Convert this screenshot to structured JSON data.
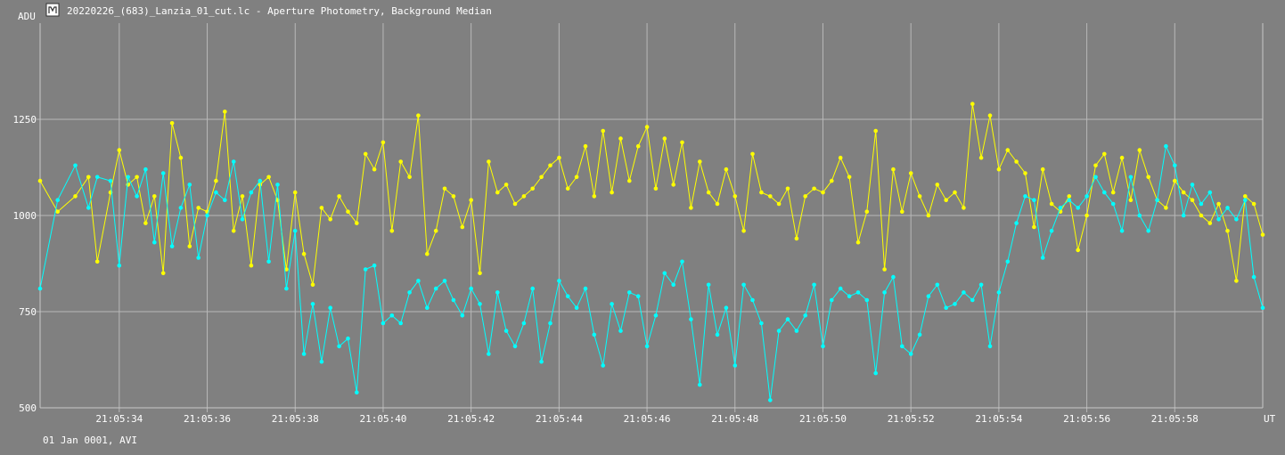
{
  "window": {
    "title": "20220226_(683)_Lanzia_01_cut.lc - Aperture Photometry, Background Median",
    "icon": "lightcurve-app-icon"
  },
  "footer": {
    "date_label": "01 Jan 0001, AVI"
  },
  "chart_data": {
    "type": "line",
    "ylabel": "ADU",
    "xlabel": "UT",
    "ylim": [
      500,
      1500
    ],
    "xlim_seconds": [
      32.2,
      60.0
    ],
    "y_ticks": [
      500,
      750,
      1000,
      1250
    ],
    "x_ticks": [
      {
        "sec": 34,
        "label": "21:05:34"
      },
      {
        "sec": 36,
        "label": "21:05:36"
      },
      {
        "sec": 38,
        "label": "21:05:38"
      },
      {
        "sec": 40,
        "label": "21:05:40"
      },
      {
        "sec": 42,
        "label": "21:05:42"
      },
      {
        "sec": 44,
        "label": "21:05:44"
      },
      {
        "sec": 46,
        "label": "21:05:46"
      },
      {
        "sec": 48,
        "label": "21:05:48"
      },
      {
        "sec": 50,
        "label": "21:05:50"
      },
      {
        "sec": 52,
        "label": "21:05:52"
      },
      {
        "sec": 54,
        "label": "21:05:54"
      },
      {
        "sec": 56,
        "label": "21:05:56"
      },
      {
        "sec": 58,
        "label": "21:05:58"
      }
    ],
    "grid": true,
    "series": [
      {
        "color": "#ffff00",
        "x": [
          32.2,
          32.6,
          33.0,
          33.3,
          33.5,
          33.8,
          34.0,
          34.2,
          34.4,
          34.6,
          34.8,
          35.0,
          35.2,
          35.4,
          35.6,
          35.8,
          36.0,
          36.2,
          36.4,
          36.6,
          36.8,
          37.0,
          37.2,
          37.4,
          37.6,
          37.8,
          38.0,
          38.2,
          38.4,
          38.6,
          38.8,
          39.0,
          39.2,
          39.4,
          39.6,
          39.8,
          40.0,
          40.2,
          40.4,
          40.6,
          40.8,
          41.0,
          41.2,
          41.4,
          41.6,
          41.8,
          42.0,
          42.2,
          42.4,
          42.6,
          42.8,
          43.0,
          43.2,
          43.4,
          43.6,
          43.8,
          44.0,
          44.2,
          44.4,
          44.6,
          44.8,
          45.0,
          45.2,
          45.4,
          45.6,
          45.8,
          46.0,
          46.2,
          46.4,
          46.6,
          46.8,
          47.0,
          47.2,
          47.4,
          47.6,
          47.8,
          48.0,
          48.2,
          48.4,
          48.6,
          48.8,
          49.0,
          49.2,
          49.4,
          49.6,
          49.8,
          50.0,
          50.2,
          50.4,
          50.6,
          50.8,
          51.0,
          51.2,
          51.4,
          51.6,
          51.8,
          52.0,
          52.2,
          52.4,
          52.6,
          52.8,
          53.0,
          53.2,
          53.4,
          53.6,
          53.8,
          54.0,
          54.2,
          54.4,
          54.6,
          54.8,
          55.0,
          55.2,
          55.4,
          55.6,
          55.8,
          56.0,
          56.2,
          56.4,
          56.6,
          56.8,
          57.0,
          57.2,
          57.4,
          57.6,
          57.8,
          58.0,
          58.2,
          58.4,
          58.6,
          58.8,
          59.0,
          59.2,
          59.4,
          59.6,
          59.8,
          60.0
        ],
        "values": [
          1090,
          1010,
          1050,
          1100,
          880,
          1060,
          1170,
          1080,
          1100,
          980,
          1050,
          850,
          1240,
          1150,
          920,
          1020,
          1010,
          1090,
          1270,
          960,
          1050,
          870,
          1080,
          1100,
          1040,
          860,
          1060,
          900,
          820,
          1020,
          990,
          1050,
          1010,
          980,
          1160,
          1120,
          1190,
          960,
          1140,
          1100,
          1260,
          900,
          960,
          1070,
          1050,
          970,
          1040,
          850,
          1140,
          1060,
          1080,
          1030,
          1050,
          1070,
          1100,
          1130,
          1150,
          1070,
          1100,
          1180,
          1050,
          1220,
          1060,
          1200,
          1090,
          1180,
          1230,
          1070,
          1200,
          1080,
          1190,
          1020,
          1140,
          1060,
          1030,
          1120,
          1050,
          960,
          1160,
          1060,
          1050,
          1030,
          1070,
          940,
          1050,
          1070,
          1060,
          1090,
          1150,
          1100,
          930,
          1010,
          1220,
          860,
          1120,
          1010,
          1110,
          1050,
          1000,
          1080,
          1040,
          1060,
          1020,
          1290,
          1150,
          1260,
          1120,
          1170,
          1140,
          1110,
          970,
          1120,
          1030,
          1010,
          1050,
          910,
          1000,
          1130,
          1160,
          1060,
          1150,
          1040,
          1170,
          1100,
          1040,
          1020,
          1090,
          1060,
          1040,
          1000,
          980,
          1030,
          960,
          830,
          1050,
          1030,
          950
        ]
      },
      {
        "color": "#00ffff",
        "x": [
          32.2,
          32.6,
          33.0,
          33.3,
          33.5,
          33.8,
          34.0,
          34.2,
          34.4,
          34.6,
          34.8,
          35.0,
          35.2,
          35.4,
          35.6,
          35.8,
          36.0,
          36.2,
          36.4,
          36.6,
          36.8,
          37.0,
          37.2,
          37.4,
          37.6,
          37.8,
          38.0,
          38.2,
          38.4,
          38.6,
          38.8,
          39.0,
          39.2,
          39.4,
          39.6,
          39.8,
          40.0,
          40.2,
          40.4,
          40.6,
          40.8,
          41.0,
          41.2,
          41.4,
          41.6,
          41.8,
          42.0,
          42.2,
          42.4,
          42.6,
          42.8,
          43.0,
          43.2,
          43.4,
          43.6,
          43.8,
          44.0,
          44.2,
          44.4,
          44.6,
          44.8,
          45.0,
          45.2,
          45.4,
          45.6,
          45.8,
          46.0,
          46.2,
          46.4,
          46.6,
          46.8,
          47.0,
          47.2,
          47.4,
          47.6,
          47.8,
          48.0,
          48.2,
          48.4,
          48.6,
          48.8,
          49.0,
          49.2,
          49.4,
          49.6,
          49.8,
          50.0,
          50.2,
          50.4,
          50.6,
          50.8,
          51.0,
          51.2,
          51.4,
          51.6,
          51.8,
          52.0,
          52.2,
          52.4,
          52.6,
          52.8,
          53.0,
          53.2,
          53.4,
          53.6,
          53.8,
          54.0,
          54.2,
          54.4,
          54.6,
          54.8,
          55.0,
          55.2,
          55.4,
          55.6,
          55.8,
          56.0,
          56.2,
          56.4,
          56.6,
          56.8,
          57.0,
          57.2,
          57.4,
          57.6,
          57.8,
          58.0,
          58.2,
          58.4,
          58.6,
          58.8,
          59.0,
          59.2,
          59.4,
          59.6,
          59.8,
          60.0
        ],
        "values": [
          810,
          1040,
          1130,
          1020,
          1100,
          1090,
          870,
          1100,
          1050,
          1120,
          930,
          1110,
          920,
          1020,
          1080,
          890,
          1000,
          1060,
          1040,
          1140,
          990,
          1060,
          1090,
          880,
          1080,
          810,
          960,
          640,
          770,
          620,
          760,
          660,
          680,
          540,
          860,
          870,
          720,
          740,
          720,
          800,
          830,
          760,
          810,
          830,
          780,
          740,
          810,
          770,
          640,
          800,
          700,
          660,
          720,
          810,
          620,
          720,
          830,
          790,
          760,
          810,
          690,
          610,
          770,
          700,
          800,
          790,
          660,
          740,
          850,
          820,
          880,
          730,
          560,
          820,
          690,
          760,
          610,
          820,
          780,
          720,
          520,
          700,
          730,
          700,
          740,
          820,
          660,
          780,
          810,
          790,
          800,
          780,
          590,
          800,
          840,
          660,
          640,
          690,
          790,
          820,
          760,
          770,
          800,
          780,
          820,
          660,
          800,
          880,
          980,
          1050,
          1040,
          890,
          960,
          1020,
          1040,
          1020,
          1050,
          1100,
          1060,
          1030,
          960,
          1100,
          1000,
          960,
          1040,
          1180,
          1130,
          1000,
          1080,
          1030,
          1060,
          990,
          1020,
          990,
          1040,
          840,
          760
        ]
      }
    ]
  }
}
